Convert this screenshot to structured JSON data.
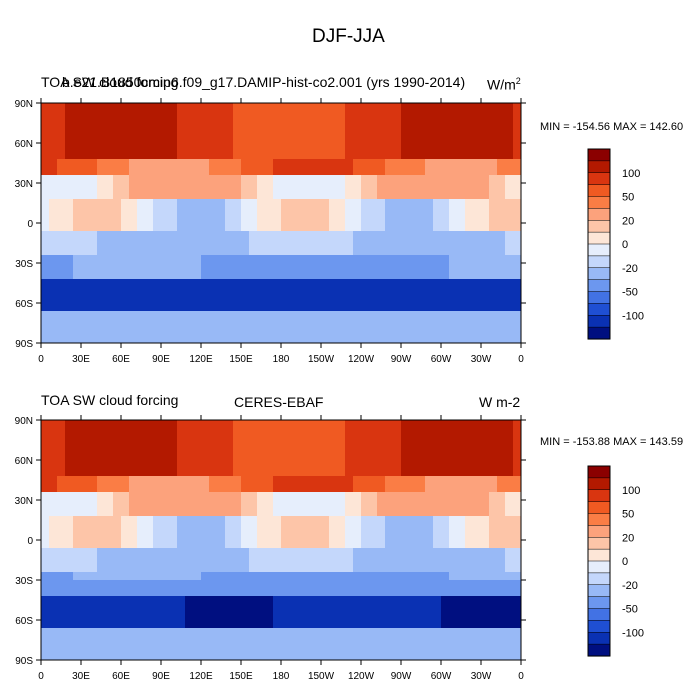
{
  "figure": {
    "title": "DJF-JJA"
  },
  "panels": [
    {
      "left_title": "TOA SW cloud forcing",
      "center_title": "b.e21.B1850cmip6.f09_g17.DAMIP-hist-co2.001 (yrs 1990-2014)",
      "units": "W/m",
      "units_sup": "2",
      "stats": "MIN = -154.56 MAX = 142.60"
    },
    {
      "left_title": "TOA SW cloud forcing",
      "center_title": "CERES-EBAF",
      "units": "W m-2",
      "units_sup": "",
      "stats": "MIN = -153.88 MAX = 143.59"
    }
  ],
  "chart_data": [
    {
      "type": "heatmap",
      "title": "TOA SW cloud forcing",
      "subtitle": "b.e21.B1850cmip6.f09_g17.DAMIP-hist-co2.001 (yrs 1990-2014)",
      "units": "W/m2",
      "min": -154.56,
      "max": 142.6,
      "x_ticks": [
        "0",
        "30E",
        "60E",
        "90E",
        "120E",
        "150E",
        "180",
        "150W",
        "120W",
        "90W",
        "60W",
        "30W",
        "0"
      ],
      "y_ticks": [
        "90N",
        "60N",
        "30N",
        "0",
        "30S",
        "60S",
        "90S"
      ],
      "xlim": [
        0,
        360
      ],
      "ylim": [
        -90,
        90
      ],
      "colorbar_levels": [
        -120,
        -110,
        -100,
        -90,
        -80,
        -70,
        -60,
        -50,
        -40,
        -30,
        -20,
        -10,
        0,
        10,
        20,
        30,
        40,
        50,
        60,
        70,
        80,
        90,
        100,
        110,
        120
      ],
      "colorbar_labels": [
        "100",
        "50",
        "20",
        "0",
        "-20",
        "-50",
        "-100"
      ]
    },
    {
      "type": "heatmap",
      "title": "TOA SW cloud forcing",
      "subtitle": "CERES-EBAF",
      "units": "W m-2",
      "min": -153.88,
      "max": 143.59,
      "x_ticks": [
        "0",
        "30E",
        "60E",
        "90E",
        "120E",
        "150E",
        "180",
        "150W",
        "120W",
        "90W",
        "60W",
        "30W",
        "0"
      ],
      "y_ticks": [
        "90N",
        "60N",
        "30N",
        "0",
        "30S",
        "60S",
        "90S"
      ],
      "xlim": [
        0,
        360
      ],
      "ylim": [
        -90,
        90
      ],
      "colorbar_levels": [
        -120,
        -110,
        -100,
        -90,
        -80,
        -70,
        -60,
        -50,
        -40,
        -30,
        -20,
        -10,
        0,
        10,
        20,
        30,
        40,
        50,
        60,
        70,
        80,
        90,
        100,
        110,
        120
      ],
      "colorbar_labels": [
        "100",
        "50",
        "20",
        "0",
        "-20",
        "-50",
        "-100"
      ]
    }
  ],
  "colorbar_colors": [
    "#8b0000",
    "#b31900",
    "#d93510",
    "#f05a22",
    "#fa7d45",
    "#fca27c",
    "#fdc5a8",
    "#fde6d7",
    "#e6eefc",
    "#c4d7fb",
    "#98b9f6",
    "#6c97ef",
    "#4272e4",
    "#1f4fd3",
    "#0a31b3",
    "#000f80"
  ]
}
